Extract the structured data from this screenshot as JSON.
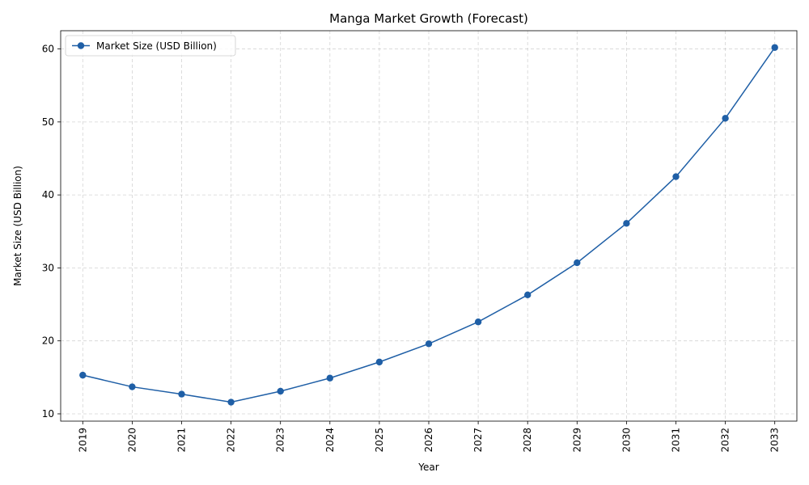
{
  "chart_data": {
    "type": "line",
    "title": "Manga Market Growth (Forecast)",
    "xlabel": "Year",
    "ylabel": "Market Size (USD Billion)",
    "categories": [
      "2019",
      "2020",
      "2021",
      "2022",
      "2023",
      "2024",
      "2025",
      "2026",
      "2027",
      "2028",
      "2029",
      "2030",
      "2031",
      "2032",
      "2033"
    ],
    "series": [
      {
        "name": "Market Size (USD Billion)",
        "values": [
          15.3,
          13.7,
          12.7,
          11.6,
          13.1,
          14.9,
          17.1,
          19.6,
          22.6,
          26.3,
          30.7,
          36.1,
          42.5,
          50.5,
          60.2
        ],
        "color": "#1f5fa6"
      }
    ],
    "ylim": [
      9.0,
      62.5
    ],
    "yticks": [
      10,
      20,
      30,
      40,
      50,
      60
    ],
    "grid": true,
    "legend_position": "top-left",
    "marker": "circle"
  }
}
